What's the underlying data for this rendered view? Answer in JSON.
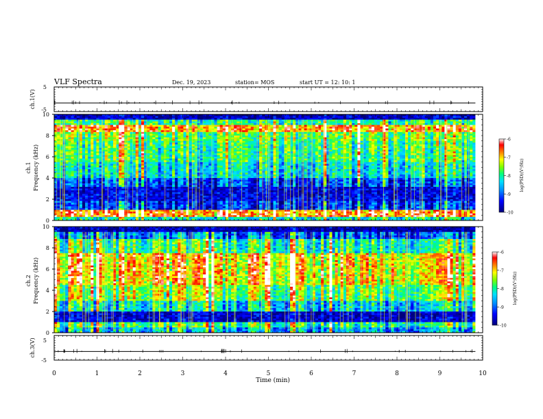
{
  "header": {
    "title": "VLF Spectra",
    "date": "Dec. 19, 2023",
    "station": "station= MOS",
    "start": "start  UT =   12: 10: 1"
  },
  "chart_data": [
    {
      "type": "line",
      "name": "ch1-waveform",
      "ylabel": "ch.1(V)",
      "ylim": [
        -5,
        5
      ],
      "yticks": [
        "5",
        "-5"
      ],
      "baseline": -1.5
    },
    {
      "type": "heatmap",
      "name": "ch1-spectrogram",
      "ylabel": "ch.1\nFrequency (kHz)",
      "ylim": [
        0,
        10
      ],
      "yticks": [
        "0",
        "2",
        "4",
        "6",
        "8",
        "10"
      ],
      "bands": [
        {
          "f0": 0.0,
          "f1": 0.4,
          "level": 0.45
        },
        {
          "f0": 0.4,
          "f1": 1.0,
          "level": 0.85
        },
        {
          "f0": 1.0,
          "f1": 1.8,
          "level": 0.18
        },
        {
          "f0": 1.8,
          "f1": 3.2,
          "level": 0.12
        },
        {
          "f0": 3.2,
          "f1": 4.0,
          "level": 0.22
        },
        {
          "f0": 4.0,
          "f1": 5.5,
          "level": 0.42
        },
        {
          "f0": 5.5,
          "f1": 7.5,
          "level": 0.52
        },
        {
          "f0": 7.5,
          "f1": 8.3,
          "level": 0.58
        },
        {
          "f0": 8.3,
          "f1": 9.0,
          "level": 0.82
        },
        {
          "f0": 9.0,
          "f1": 9.5,
          "level": 0.5
        },
        {
          "f0": 9.5,
          "f1": 10.0,
          "level": 0.08
        }
      ],
      "colorbar": {
        "label": "log(PSD)(V²/Hz)",
        "ticks": [
          "-6",
          "-7",
          "-8",
          "-9",
          "-10"
        ],
        "range": [
          -10,
          -6
        ]
      }
    },
    {
      "type": "heatmap",
      "name": "ch2-spectrogram",
      "ylabel": "ch.2\nFrequency (kHz)",
      "ylim": [
        0,
        10
      ],
      "yticks": [
        "0",
        "2",
        "4",
        "6",
        "8",
        "10"
      ],
      "bands": [
        {
          "f0": 0.0,
          "f1": 0.5,
          "level": 0.35
        },
        {
          "f0": 0.5,
          "f1": 1.0,
          "level": 0.5
        },
        {
          "f0": 1.0,
          "f1": 2.0,
          "level": 0.1
        },
        {
          "f0": 2.0,
          "f1": 3.0,
          "level": 0.4
        },
        {
          "f0": 3.0,
          "f1": 4.5,
          "level": 0.6
        },
        {
          "f0": 4.5,
          "f1": 7.5,
          "level": 0.75
        },
        {
          "f0": 7.5,
          "f1": 8.8,
          "level": 0.5
        },
        {
          "f0": 8.8,
          "f1": 9.5,
          "level": 0.25
        },
        {
          "f0": 9.5,
          "f1": 10.0,
          "level": 0.06
        }
      ],
      "colorbar": {
        "label": "log(PSD)(V²/Hz)",
        "ticks": [
          "-6",
          "-7",
          "-8",
          "-9",
          "-10"
        ],
        "range": [
          -10,
          -6
        ]
      }
    },
    {
      "type": "line",
      "name": "ch3-waveform",
      "ylabel": "ch.3(V)",
      "ylim": [
        -5,
        5
      ],
      "yticks": [
        "5",
        "-5"
      ],
      "baseline": -1.5
    }
  ],
  "xaxis": {
    "label": "Time (min)",
    "xlim": [
      0,
      10
    ],
    "ticks": [
      "0",
      "1",
      "2",
      "3",
      "4",
      "5",
      "6",
      "7",
      "8",
      "9",
      "10"
    ],
    "data_end": 9.83
  },
  "colors": {
    "colormap": [
      "#00007a",
      "#0000ff",
      "#0070ff",
      "#00d2ff",
      "#00ff80",
      "#80ff00",
      "#ffff00",
      "#ff8000",
      "#ff0000",
      "#ffffff"
    ]
  }
}
